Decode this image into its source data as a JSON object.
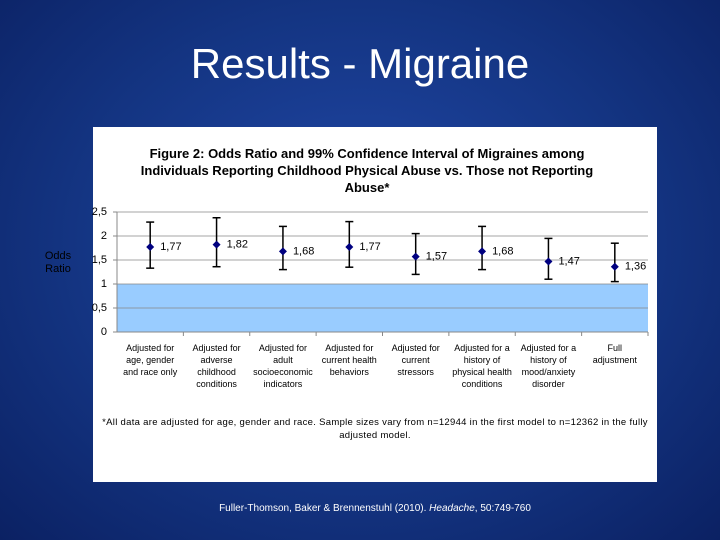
{
  "slide_title": "Results - Migraine",
  "chart_data": {
    "type": "errorbar",
    "title": "Figure 2: Odds Ratio and 99% Confidence Interval of Migraines among Individuals Reporting Childhood Physical Abuse vs. Those not Reporting Abuse*",
    "y_label": "Odds Ratio",
    "categories": [
      "Adjusted for\nage, gender\nand race only",
      "Adjusted for\nadverse\nchildhood\nconditions",
      "Adjusted for\nadult\nsocioeconomic\nindicators",
      "Adjusted for\ncurrent health\nbehaviors",
      "Adjusted for\ncurrent\nstressors",
      "Adjusted for a\nhistory of\nphysical health\nconditions",
      "Adjusted for a\nhistory of\nmood/anxiety\ndisorder",
      "Full\nadjustment"
    ],
    "values": [
      1.77,
      1.82,
      1.68,
      1.77,
      1.57,
      1.68,
      1.47,
      1.36
    ],
    "value_labels": [
      "1,77",
      "1,82",
      "1,68",
      "1,77",
      "1,57",
      "1,68",
      "1,47",
      "1,36"
    ],
    "lower": [
      1.33,
      1.36,
      1.3,
      1.35,
      1.2,
      1.3,
      1.1,
      1.05
    ],
    "upper": [
      2.29,
      2.38,
      2.2,
      2.3,
      2.05,
      2.2,
      1.95,
      1.85
    ],
    "color": "#000080",
    "shaded_range": [
      0,
      1
    ],
    "shaded_color": "#99ccff",
    "ylim": [
      0,
      2.5
    ],
    "yticks": [
      0,
      {
        "value": 0.5,
        "label": "0,5"
      },
      1,
      {
        "value": 1.5,
        "label": "1,5"
      },
      2,
      {
        "value": 2.5,
        "label": "2,5"
      }
    ],
    "grid": true,
    "footnote": "*All data are adjusted for age, gender and race. Sample sizes vary from n=12944 in the first model to n=12362 in the fully adjusted model."
  },
  "citation": {
    "authors": "Fuller-Thomson, Baker & Brennenstuhl (2010). ",
    "journal": "Headache",
    "pages": ", 50:749-760"
  }
}
